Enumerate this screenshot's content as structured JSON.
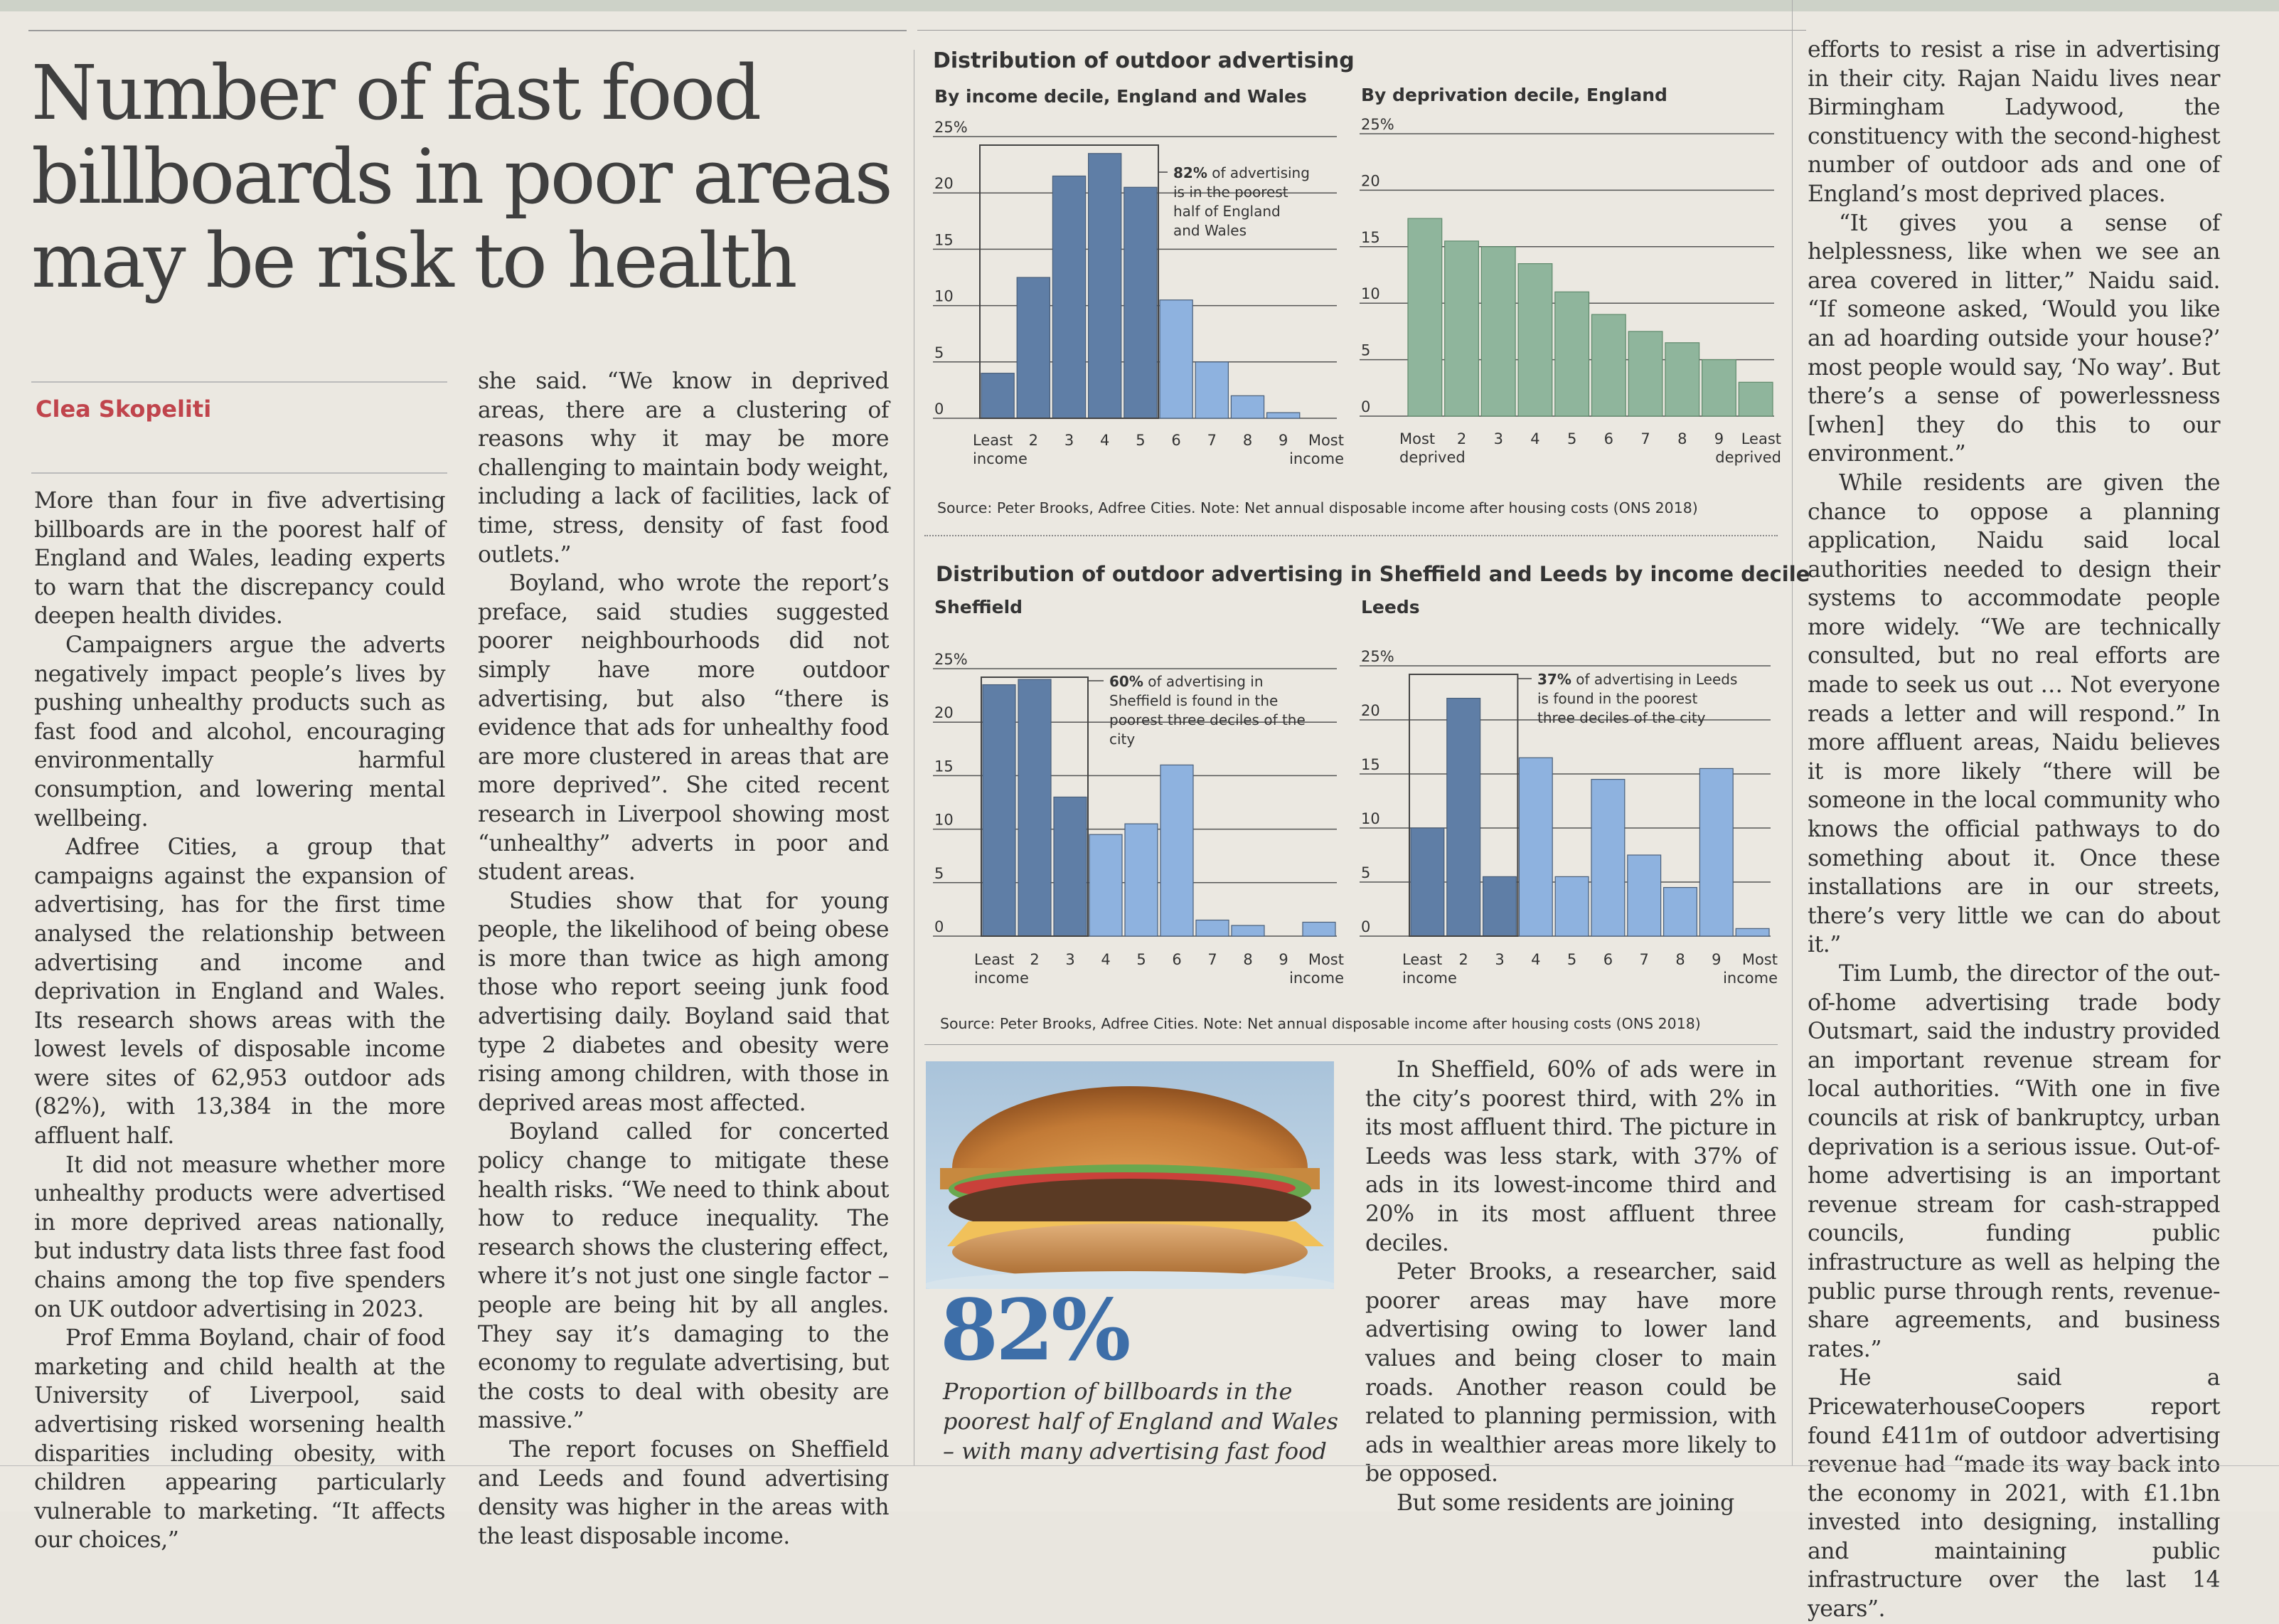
{
  "headline": "Number of fast food billboards in poor areas may be risk to health",
  "byline": "Clea Skopeliti",
  "col1": [
    "More than four in five advertising billboards are in the poorest half of England and Wales, leading experts to warn that the discrepancy could deepen health divides.",
    "Campaigners argue the adverts negatively impact people’s lives by pushing unhealthy products such as fast food and alcohol, encouraging environmentally harmful consumption, and lowering mental wellbeing.",
    "Adfree Cities, a group that campaigns against the expansion of advertising, has for the first time analysed the relationship between advertising and income and deprivation in England and Wales. Its research shows areas with the lowest levels of disposable income were sites of 62,953 outdoor ads (82%), with 13,384 in the more affluent half.",
    "It did not measure whether more unhealthy products were advertised in more deprived areas nationally, but industry data lists three fast food chains among the top five spenders on UK outdoor advertising in 2023.",
    "Prof Emma Boyland, chair of food marketing and child health at the University of Liverpool, said advertising risked worsening health disparities including obesity, with children appearing particularly vulnerable to marketing. “It affects our choices,”"
  ],
  "col2": [
    "she said. “We know in deprived areas, there are a clustering of reasons why it may be more challenging to maintain body weight, including a lack of facilities, lack of time, stress, density of fast food outlets.”",
    "Boyland, who wrote the report’s preface, said studies suggested poorer neighbourhoods did not simply have more outdoor advertising, but also “there is evidence that ads for unhealthy food are more clustered in areas that are more deprived”. She cited recent research in Liverpool showing most “unhealthy” adverts in poor and student areas.",
    "Studies show that for young people, the likelihood of being obese is more than twice as high among those who report seeing junk food advertising daily. Boyland said that type 2 diabetes and obesity were rising among children, with those in deprived areas most affected.",
    "Boyland called for concerted policy change to mitigate these health risks. “We need to think about how to reduce inequality. The research shows the clustering effect, where it’s not just one single factor – people are being hit by all angles. They say it’s damaging to the economy to regulate advertising, but the costs to deal with obesity are massive.”",
    "The report focuses on Sheffield and Leeds and found advertising density was higher in the areas with the least disposable income."
  ],
  "col3": [
    "In Sheffield, 60% of ads were in the city’s poorest third, with 2% in its most affluent third. The picture in Leeds was less stark, with 37% of ads in its lowest-income third and 20% in its most affluent three deciles.",
    "Peter Brooks, a researcher, said poorer areas may have more advertising owing to lower land values and being closer to main roads. Another reason could be related to planning permission, with ads in wealthier areas more likely to be opposed.",
    "But some residents are joining"
  ],
  "col4": [
    "efforts to resist a rise in advertising in their city. Rajan Naidu lives near Birmingham Ladywood, the constituency with the second-highest number of outdoor ads and one of England’s most deprived places.",
    "“It gives you a sense of helplessness, like when we see an area covered in litter,” Naidu said. “If someone asked, ‘Would you like an ad hoarding outside your house?’ most people would say, ‘No way’. But there’s a sense of powerlessness [when] they do this to our environment.”",
    "While residents are given the chance to oppose a planning application, Naidu said local authorities needed to design their systems to accommodate people more widely. “We are technically consulted, but no real efforts are made to seek us out … Not everyone reads a letter and will respond.” In more affluent areas, Naidu believes it is more likely “there will be someone in the local community who knows the official pathways to do something about it. Once these installations are in our streets, there’s very little we can do about it.”",
    "Tim Lumb, the director of the out-of-home advertising trade body Outsmart, said the industry provided an important revenue stream for local authorities. “With one in five councils at risk of bankruptcy, urban deprivation is a serious issue. Out-of-home advertising is an important revenue stream for cash-strapped councils, funding public infrastructure as well as helping the public purse through rents, revenue-share agreements, and business rates.”",
    "He said a PricewaterhouseCoopers report found £411m of outdoor advertising revenue had “made its way back into the economy in 2021, with £1.1bn invested into designing, installing and maintaining public infrastructure over the last 14 years”."
  ],
  "graphic1": {
    "title": "Distribution of outdoor advertising",
    "source": "Source: Peter Brooks, Adfree Cities. Note: Net annual disposable income after housing costs (ONS 2018)"
  },
  "graphic2": {
    "title": "Distribution of outdoor advertising in Sheffield and Leeds by income decile",
    "source": "Source: Peter Brooks, Adfree Cities. Note: Net annual disposable income after housing costs (ONS 2018)"
  },
  "stat": {
    "value": "82%",
    "caption": "Proportion of billboards in the poorest half of England and Wales – with many advertising fast food"
  },
  "colors": {
    "dark_blue": "#5f7ea6",
    "light_blue": "#8eb2df",
    "green": "#8fb59c",
    "red": "#c0444c",
    "stat_blue": "#3d6ea8"
  },
  "chart_data": [
    {
      "type": "bar",
      "subtitle": "By income decile, England and Wales",
      "categories": [
        "Least income",
        "2",
        "3",
        "4",
        "5",
        "6",
        "7",
        "8",
        "9",
        "Most income"
      ],
      "values": [
        4,
        12.5,
        21.5,
        23.5,
        20.5,
        10.5,
        5,
        2,
        0.5,
        0
      ],
      "highlight_count": 5,
      "ylim": [
        0,
        25
      ],
      "yticks": [
        "25%",
        "20",
        "15",
        "10",
        "5",
        "0"
      ],
      "annotation": "82% of advertising is in the poorest half of England and Wales",
      "annotation_bold": "82%"
    },
    {
      "type": "bar",
      "subtitle": "By deprivation decile, England",
      "categories": [
        "Most deprived",
        "2",
        "3",
        "4",
        "5",
        "6",
        "7",
        "8",
        "9",
        "Least deprived"
      ],
      "values": [
        17.5,
        15.5,
        15,
        13.5,
        11,
        9,
        7.5,
        6.5,
        5,
        3
      ],
      "ylim": [
        0,
        25
      ],
      "yticks": [
        "25%",
        "20",
        "15",
        "10",
        "5",
        "0"
      ]
    },
    {
      "type": "bar",
      "subtitle": "Sheffield",
      "categories": [
        "Least income",
        "2",
        "3",
        "4",
        "5",
        "6",
        "7",
        "8",
        "9",
        "Most income"
      ],
      "values": [
        23.5,
        24,
        13,
        9.5,
        10.5,
        16,
        1.5,
        1,
        0,
        1.3
      ],
      "highlight_count": 3,
      "ylim": [
        0,
        25
      ],
      "yticks": [
        "25%",
        "20",
        "15",
        "10",
        "5",
        "0"
      ],
      "annotation": "60% of advertising in Sheffield is found in the poorest three deciles of the city",
      "annotation_bold": "60%"
    },
    {
      "type": "bar",
      "subtitle": "Leeds",
      "categories": [
        "Least income",
        "2",
        "3",
        "4",
        "5",
        "6",
        "7",
        "8",
        "9",
        "Most income"
      ],
      "values": [
        10,
        22,
        5.5,
        16.5,
        5.5,
        14.5,
        7.5,
        4.5,
        15.5,
        0.7
      ],
      "highlight_count": 3,
      "ylim": [
        0,
        25
      ],
      "yticks": [
        "25%",
        "20",
        "15",
        "10",
        "5",
        "0"
      ],
      "annotation": "37% of advertising in Leeds is found in the poorest three deciles of the city",
      "annotation_bold": "37%"
    }
  ]
}
